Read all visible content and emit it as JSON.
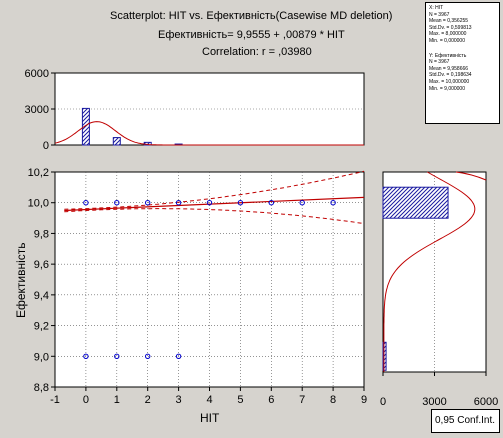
{
  "header": {
    "title": "Scatterplot: HIT      vs.    Ефективність(Casewise MD deletion)",
    "equation": "Ефективність= 9,9555 + ,00879 * HIT",
    "correlation": "Correlation: r = ,03980"
  },
  "stats": {
    "x": {
      "heading": "X:  HIT",
      "n": "N = 3967",
      "mean": "Mean = 0,356255",
      "sd": "Std.Dv. = 0,599813",
      "max": "Max. = 8,000000",
      "min": "Min. = 0,000000"
    },
    "y": {
      "heading": "Y:  Ефективність",
      "n": "N = 3967",
      "mean": "Mean = 9,958666",
      "sd": "Std.Dv. = 0,198634",
      "max": "Max. = 10,000000",
      "min": "Min. = 9,000000"
    }
  },
  "legend_box": "0,95 Conf.Int.",
  "colors": {
    "background": "#d6d3ce",
    "fit_line": "#c00000",
    "points": "#0000cc",
    "bars": "#1a1aa0"
  },
  "chart_data": [
    {
      "type": "scatter",
      "title": "Scatterplot: HIT      vs.    Ефективність(Casewise MD deletion)",
      "xlabel": "HIT",
      "ylabel": "Ефективність",
      "xlim": [
        -1,
        9
      ],
      "ylim": [
        8.8,
        10.2
      ],
      "x_ticks": [
        "-1",
        "0",
        "1",
        "2",
        "3",
        "4",
        "5",
        "6",
        "7",
        "8",
        "9"
      ],
      "y_ticks": [
        "8,8",
        "9,0",
        "9,2",
        "9,4",
        "9,6",
        "9,8",
        "10,0",
        "10,2"
      ],
      "grid": true,
      "points": [
        {
          "x": 0,
          "y": 10
        },
        {
          "x": 1,
          "y": 10
        },
        {
          "x": 2,
          "y": 10
        },
        {
          "x": 3,
          "y": 10
        },
        {
          "x": 4,
          "y": 10
        },
        {
          "x": 5,
          "y": 10
        },
        {
          "x": 6,
          "y": 10
        },
        {
          "x": 7,
          "y": 10
        },
        {
          "x": 8,
          "y": 10
        },
        {
          "x": 0,
          "y": 9
        },
        {
          "x": 1,
          "y": 9
        },
        {
          "x": 2,
          "y": 9
        },
        {
          "x": 3,
          "y": 9
        }
      ],
      "regression": {
        "intercept": 9.9555,
        "slope": 0.00879
      },
      "confidence_level": 0.95
    },
    {
      "type": "bar",
      "description_axis": "HIT histogram",
      "ylim": [
        0,
        6000
      ],
      "y_ticks": [
        "0",
        "3000",
        "6000"
      ],
      "categories": [
        0,
        1,
        2,
        3
      ],
      "values": [
        3050,
        620,
        220,
        80
      ]
    },
    {
      "type": "bar",
      "description_axis": "Ефективність histogram",
      "xlim": [
        0,
        6000
      ],
      "x_ticks": [
        "0",
        "3000",
        "6000"
      ],
      "categories": [
        10,
        9
      ],
      "values": [
        3790,
        180
      ]
    }
  ]
}
